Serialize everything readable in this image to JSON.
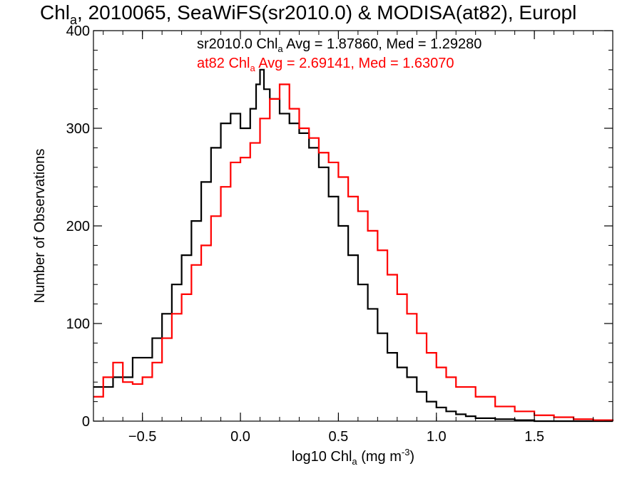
{
  "colors": {
    "series1": "#000000",
    "series2": "#ff0000",
    "axis": "#000000"
  },
  "chart_data": {
    "type": "step-histogram",
    "title": {
      "pre": "Chl",
      "sub": "a",
      "post": ", 2010065, SeaWiFS(sr2010.0) & MODISA(at82), Europl"
    },
    "xlabel": {
      "pre": "log10 Chl",
      "sub": "a",
      "post": " (mg m",
      "sup": "-3",
      "end": ")"
    },
    "ylabel": "Number of Observations",
    "xlim": [
      -0.75,
      1.9
    ],
    "ylim": [
      0,
      400
    ],
    "x_ticks": [
      -0.5,
      0.0,
      0.5,
      1.0,
      1.5
    ],
    "x_tick_labels": [
      "−0.5",
      "0.0",
      "0.5",
      "1.0",
      "1.5"
    ],
    "y_ticks": [
      0,
      100,
      200,
      300,
      400
    ],
    "y_tick_labels": [
      "0",
      "100",
      "200",
      "300",
      "400"
    ],
    "annotations": [
      {
        "pre": "sr2010.0 Chl",
        "sub": "a",
        "post": " Avg = 1.87860, Med = 1.29280",
        "color": "#000000"
      },
      {
        "pre": "at82 Chl",
        "sub": "a",
        "post": " Avg = 2.69141, Med = 1.63070",
        "color": "#ff0000"
      }
    ],
    "series": [
      {
        "color": "#000000",
        "x": [
          -0.75,
          -0.65,
          -0.55,
          -0.45,
          -0.4,
          -0.35,
          -0.3,
          -0.25,
          -0.2,
          -0.15,
          -0.1,
          -0.05,
          0.0,
          0.05,
          0.08,
          0.1,
          0.12,
          0.15,
          0.2,
          0.25,
          0.3,
          0.35,
          0.4,
          0.45,
          0.5,
          0.55,
          0.6,
          0.65,
          0.7,
          0.75,
          0.8,
          0.85,
          0.9,
          0.95,
          1.0,
          1.05,
          1.1,
          1.15,
          1.2,
          1.3,
          1.4,
          1.5,
          1.6,
          1.9
        ],
        "y": [
          35,
          45,
          65,
          85,
          110,
          140,
          170,
          205,
          245,
          280,
          305,
          315,
          300,
          320,
          345,
          360,
          340,
          330,
          315,
          305,
          295,
          280,
          260,
          230,
          200,
          170,
          140,
          115,
          90,
          70,
          55,
          45,
          30,
          20,
          14,
          10,
          7,
          5,
          3,
          2,
          1,
          0,
          0,
          0
        ]
      },
      {
        "color": "#ff0000",
        "x": [
          -0.75,
          -0.7,
          -0.65,
          -0.6,
          -0.55,
          -0.5,
          -0.45,
          -0.4,
          -0.35,
          -0.3,
          -0.25,
          -0.2,
          -0.15,
          -0.1,
          -0.05,
          0.0,
          0.05,
          0.1,
          0.15,
          0.2,
          0.25,
          0.3,
          0.35,
          0.4,
          0.45,
          0.5,
          0.55,
          0.6,
          0.65,
          0.7,
          0.75,
          0.8,
          0.85,
          0.9,
          0.95,
          1.0,
          1.05,
          1.1,
          1.2,
          1.3,
          1.4,
          1.5,
          1.6,
          1.7,
          1.8,
          1.9
        ],
        "y": [
          25,
          45,
          60,
          40,
          38,
          45,
          60,
          85,
          110,
          130,
          160,
          180,
          210,
          240,
          265,
          270,
          285,
          310,
          330,
          345,
          320,
          300,
          290,
          275,
          265,
          250,
          230,
          215,
          195,
          175,
          150,
          130,
          110,
          90,
          70,
          55,
          45,
          35,
          25,
          15,
          10,
          6,
          4,
          2,
          1,
          0
        ]
      }
    ]
  }
}
